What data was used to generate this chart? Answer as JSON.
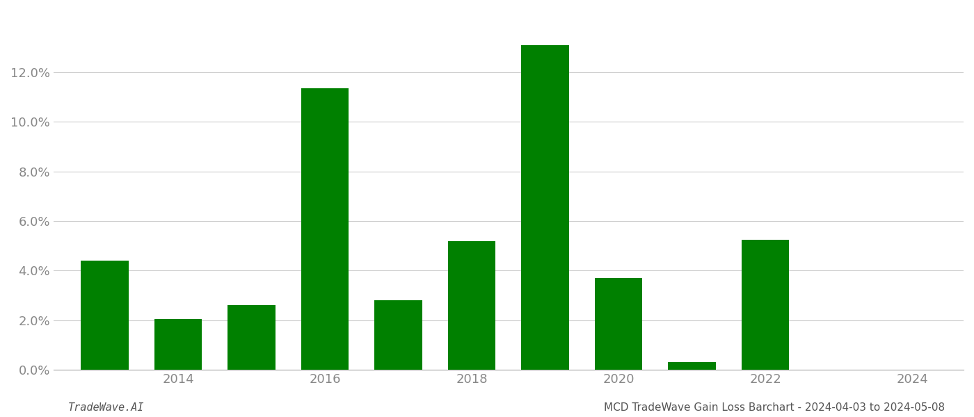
{
  "years": [
    2013,
    2014,
    2015,
    2016,
    2017,
    2018,
    2019,
    2020,
    2021,
    2022,
    2023
  ],
  "values": [
    0.044,
    0.0205,
    0.026,
    0.1135,
    0.028,
    0.052,
    0.131,
    0.037,
    0.003,
    0.0525,
    0.0
  ],
  "bar_color": "#008000",
  "footer_left": "TradeWave.AI",
  "footer_right": "MCD TradeWave Gain Loss Barchart - 2024-04-03 to 2024-05-08",
  "ylim": [
    0,
    0.145
  ],
  "ytick_vals": [
    0.0,
    0.02,
    0.04,
    0.06,
    0.08,
    0.1,
    0.12
  ],
  "background_color": "#ffffff",
  "grid_color": "#cccccc",
  "xtick_years": [
    2014,
    2016,
    2018,
    2020,
    2022,
    2024
  ],
  "xlim": [
    2012.3,
    2024.7
  ]
}
